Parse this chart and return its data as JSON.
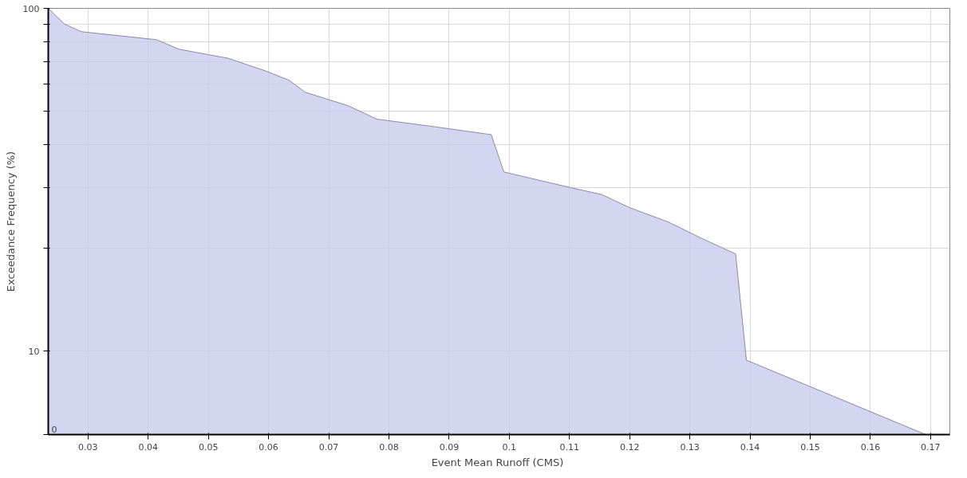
{
  "chart_data": {
    "type": "area",
    "xlabel": "Event Mean Runoff  (CMS)",
    "ylabel": "Exceedance Frequency (%)",
    "x": [
      0.0234,
      0.0261,
      0.0289,
      0.0414,
      0.0451,
      0.0533,
      0.0597,
      0.0634,
      0.0661,
      0.0732,
      0.078,
      0.0869,
      0.097,
      0.0991,
      0.1101,
      0.1154,
      0.12,
      0.1264,
      0.132,
      0.1376,
      0.1394,
      0.1692
    ],
    "series": [
      {
        "color": "#c9ccee",
        "values": [
          100,
          90,
          85.5,
          81,
          76,
          71.5,
          65.5,
          61.7,
          56.9,
          52,
          47.5,
          45.3,
          42.8,
          33.3,
          30,
          28.6,
          26.2,
          23.8,
          21.3,
          19.2,
          9.4,
          5.7
        ]
      }
    ],
    "xlim": [
      0.0234,
      0.1732
    ],
    "ylim": [
      5.7,
      100
    ],
    "xticks": [
      0.03,
      0.04,
      0.05,
      0.06,
      0.07,
      0.08,
      0.09,
      0.1,
      0.11,
      0.12,
      0.13,
      0.14,
      0.15,
      0.16,
      0.17
    ],
    "yticks": [
      {
        "value": 5.7,
        "label": null
      },
      10,
      {
        "value": 20,
        "label": null
      },
      {
        "value": 30,
        "label": null
      },
      {
        "value": 40,
        "label": null
      },
      {
        "value": 50,
        "label": null
      },
      {
        "value": 60,
        "label": null
      },
      {
        "value": 70,
        "label": null
      },
      {
        "value": 80,
        "label": null
      },
      {
        "value": 90,
        "label": null
      },
      100
    ],
    "annotations": [
      "0"
    ],
    "log": "y",
    "grid": true
  }
}
